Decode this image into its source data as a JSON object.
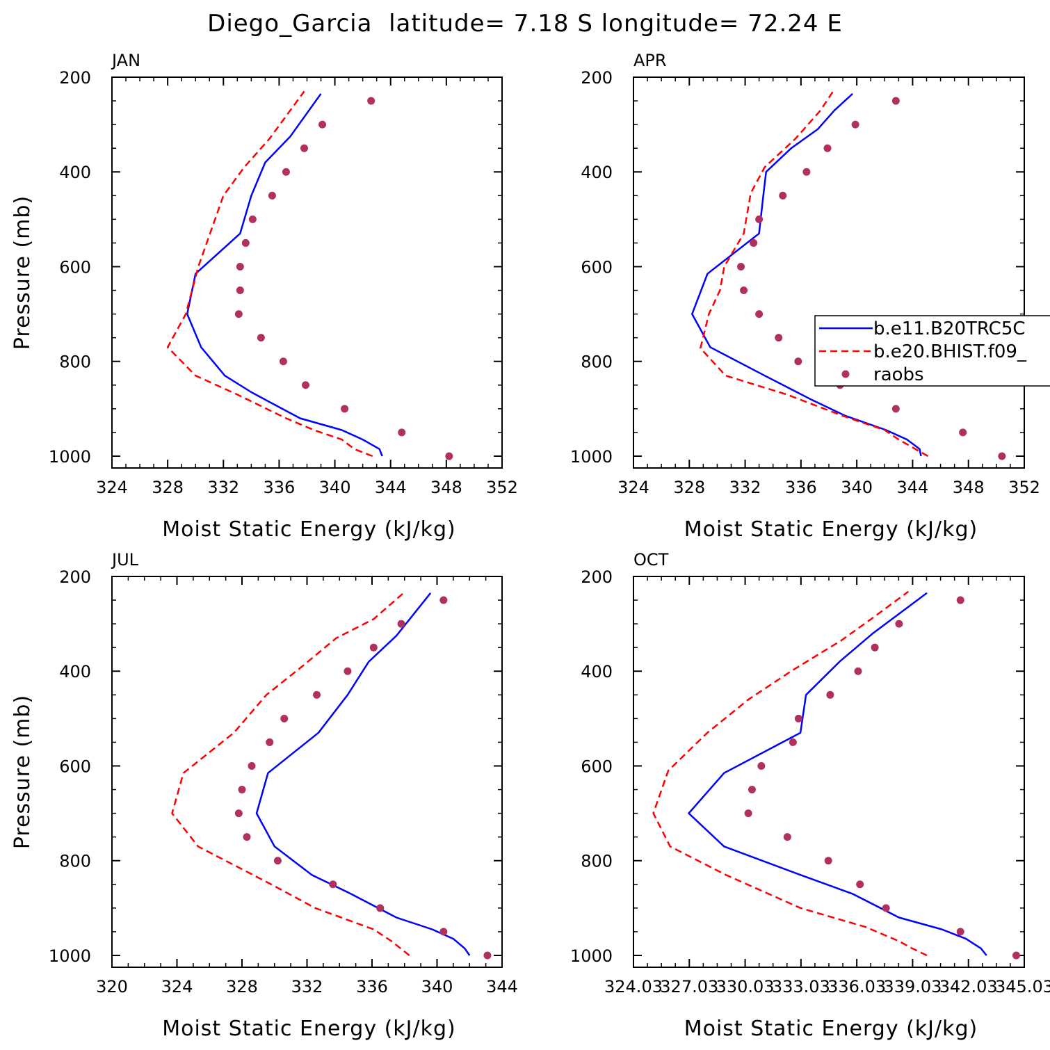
{
  "figure_title": "Diego_Garcia  latitude= 7.18 S longitude= 72.24 E",
  "colors": {
    "model1": "#0000ff",
    "model2": "#ff0000",
    "obs": "#b03060",
    "axis": "#000000"
  },
  "legend": {
    "entries": [
      "b.e11.B20TRC5C",
      "b.e20.BHIST.f09_",
      "raobs"
    ]
  },
  "chart_data": [
    {
      "type": "line",
      "panel": "JAN",
      "xlabel": "Moist Static Energy (kJ/kg)",
      "ylabel": "Pressure (mb)",
      "xlim": [
        324,
        352
      ],
      "ylim": [
        1025,
        200
      ],
      "xticks": [
        324,
        328,
        332,
        336,
        340,
        344,
        348,
        352
      ],
      "xtick_labels": [
        "324",
        "328",
        "332",
        "336",
        "340",
        "344",
        "348",
        "352"
      ],
      "yticks": [
        200,
        400,
        600,
        800,
        1000
      ],
      "ytick_labels": [
        "200",
        "400",
        "600",
        "800",
        "1000"
      ],
      "series": [
        {
          "name": "b.e11.B20TRC5C",
          "style": "solid",
          "x": [
            343.4,
            343.2,
            342.0,
            340.5,
            337.5,
            335.9,
            334.0,
            332.1,
            330.4,
            329.4,
            330.0,
            333.2,
            334.0,
            335.0,
            336.8,
            339.0
          ],
          "y": [
            1000,
            985,
            965,
            945,
            920,
            895,
            865,
            830,
            770,
            700,
            615,
            530,
            450,
            380,
            325,
            235
          ]
        },
        {
          "name": "b.e20.BHIST.f09_",
          "style": "dashed",
          "x": [
            342.7,
            341.4,
            340.5,
            338.5,
            336.5,
            333.0,
            330.0,
            328.0,
            329.3,
            330.2,
            332.0,
            333.5,
            335.3,
            337.8
          ],
          "y": [
            1000,
            985,
            965,
            945,
            920,
            870,
            830,
            770,
            700,
            600,
            450,
            390,
            330,
            230
          ]
        },
        {
          "name": "raobs",
          "style": "markers",
          "x": [
            348.2,
            344.8,
            340.7,
            337.9,
            336.3,
            334.7,
            333.1,
            333.2,
            333.2,
            333.6,
            334.1,
            335.5,
            336.5,
            337.8,
            339.1,
            342.6
          ],
          "y": [
            1000,
            950,
            900,
            850,
            800,
            750,
            700,
            650,
            600,
            550,
            500,
            450,
            400,
            350,
            300,
            250
          ]
        }
      ]
    },
    {
      "type": "line",
      "panel": "APR",
      "xlabel": "Moist Static Energy (kJ/kg)",
      "ylabel": "",
      "xlim": [
        324,
        352
      ],
      "ylim": [
        1025,
        200
      ],
      "xticks": [
        324,
        328,
        332,
        336,
        340,
        344,
        348,
        352
      ],
      "xtick_labels": [
        "324",
        "328",
        "332",
        "336",
        "340",
        "344",
        "348",
        "352"
      ],
      "yticks": [
        200,
        400,
        600,
        800,
        1000
      ],
      "ytick_labels": [
        "200",
        "400",
        "600",
        "800",
        "1000"
      ],
      "series": [
        {
          "name": "b.e11.B20TRC5C",
          "style": "solid",
          "x": [
            344.6,
            344.5,
            343.6,
            342.1,
            339.2,
            336.7,
            333.4,
            329.5,
            328.2,
            329.3,
            333.0,
            333.3,
            333.5,
            335.3,
            337.2,
            338.4,
            339.7
          ],
          "y": [
            1000,
            985,
            965,
            945,
            915,
            880,
            830,
            770,
            700,
            615,
            530,
            450,
            400,
            350,
            310,
            270,
            235
          ]
        },
        {
          "name": "b.e20.BHIST.f09_",
          "style": "dashed",
          "x": [
            345.1,
            344.5,
            343.0,
            342.0,
            339.0,
            335.0,
            330.6,
            328.8,
            329.4,
            330.2,
            330.5,
            331.9,
            332.4,
            333.4,
            335.6,
            337.4,
            338.3
          ],
          "y": [
            1000,
            990,
            965,
            945,
            915,
            870,
            830,
            772,
            700,
            650,
            600,
            530,
            445,
            390,
            330,
            270,
            230
          ]
        },
        {
          "name": "raobs",
          "style": "markers",
          "x": [
            350.4,
            347.6,
            342.8,
            338.8,
            335.8,
            334.4,
            333.0,
            331.9,
            331.7,
            332.6,
            333.0,
            334.7,
            336.4,
            337.9,
            339.9,
            342.8
          ],
          "y": [
            1000,
            950,
            900,
            850,
            800,
            750,
            700,
            650,
            600,
            550,
            500,
            450,
            400,
            350,
            300,
            250
          ]
        }
      ]
    },
    {
      "type": "line",
      "panel": "JUL",
      "xlabel": "Moist Static Energy (kJ/kg)",
      "ylabel": "Pressure (mb)",
      "xlim": [
        320,
        344
      ],
      "ylim": [
        1025,
        200
      ],
      "xticks": [
        320,
        324,
        328,
        332,
        336,
        340,
        344
      ],
      "xtick_labels": [
        "320",
        "324",
        "328",
        "332",
        "336",
        "340",
        "344"
      ],
      "yticks": [
        200,
        400,
        600,
        800,
        1000
      ],
      "ytick_labels": [
        "200",
        "400",
        "600",
        "800",
        "1000"
      ],
      "series": [
        {
          "name": "b.e11.B20TRC5C",
          "style": "solid",
          "x": [
            342.0,
            341.7,
            341.0,
            339.7,
            337.5,
            334.7,
            332.3,
            330.0,
            328.9,
            329.6,
            332.7,
            334.5,
            335.8,
            337.5,
            339.6
          ],
          "y": [
            1000,
            985,
            965,
            945,
            920,
            870,
            830,
            770,
            700,
            615,
            530,
            450,
            380,
            325,
            235
          ]
        },
        {
          "name": "b.e20.BHIST.f09_",
          "style": "dashed",
          "x": [
            338.3,
            337.2,
            336.1,
            332.5,
            329.8,
            325.3,
            323.7,
            324.4,
            327.5,
            329.5,
            331.7,
            333.8,
            336.1,
            338.0
          ],
          "y": [
            1000,
            970,
            945,
            900,
            850,
            770,
            700,
            615,
            530,
            450,
            390,
            330,
            290,
            233
          ]
        },
        {
          "name": "raobs",
          "style": "markers",
          "x": [
            343.1,
            340.4,
            336.5,
            333.6,
            330.2,
            328.3,
            327.8,
            328.0,
            328.6,
            329.7,
            330.6,
            332.6,
            334.5,
            336.1,
            337.8,
            340.4
          ],
          "y": [
            1000,
            950,
            900,
            850,
            800,
            750,
            700,
            650,
            600,
            550,
            500,
            450,
            400,
            350,
            300,
            250
          ]
        }
      ]
    },
    {
      "type": "line",
      "panel": "OCT",
      "xlabel": "Moist Static Energy (kJ/kg)",
      "ylabel": "",
      "xlim": [
        324.03,
        345.03
      ],
      "ylim": [
        1025,
        200
      ],
      "xticks": [
        324.03,
        327.03,
        330.03,
        333.03,
        336.03,
        339.03,
        342.03,
        345.03
      ],
      "xtick_labels": [
        "324.03",
        "327.03",
        "330.03",
        "333.03",
        "336.03",
        "339.03",
        "342.03",
        "345.03"
      ],
      "yticks": [
        200,
        400,
        600,
        800,
        1000
      ],
      "ytick_labels": [
        "200",
        "400",
        "600",
        "800",
        "1000"
      ],
      "series": [
        {
          "name": "b.e11.B20TRC5C",
          "style": "solid",
          "x": [
            343.0,
            342.7,
            341.9,
            340.6,
            338.3,
            335.8,
            333.0,
            328.9,
            327.0,
            328.9,
            333.0,
            333.3,
            335.1,
            336.9,
            339.8
          ],
          "y": [
            1000,
            985,
            965,
            945,
            920,
            870,
            830,
            770,
            700,
            615,
            530,
            450,
            380,
            320,
            235
          ]
        },
        {
          "name": "b.e20.BHIST.f09_",
          "style": "dashed",
          "x": [
            339.8,
            339.0,
            338.3,
            336.5,
            333.0,
            329.0,
            326.0,
            325.1,
            325.9,
            328.0,
            330.2,
            332.5,
            335.2,
            336.8,
            338.8
          ],
          "y": [
            1000,
            985,
            970,
            940,
            900,
            830,
            770,
            700,
            610,
            530,
            460,
            400,
            335,
            290,
            232
          ]
        },
        {
          "name": "raobs",
          "style": "markers",
          "x": [
            344.6,
            341.6,
            337.6,
            336.2,
            334.5,
            332.3,
            330.2,
            330.4,
            330.9,
            332.6,
            332.9,
            334.6,
            336.1,
            337.0,
            338.3,
            341.6
          ],
          "y": [
            1000,
            950,
            900,
            850,
            800,
            750,
            700,
            650,
            600,
            550,
            500,
            450,
            400,
            350,
            300,
            250
          ]
        }
      ]
    }
  ]
}
